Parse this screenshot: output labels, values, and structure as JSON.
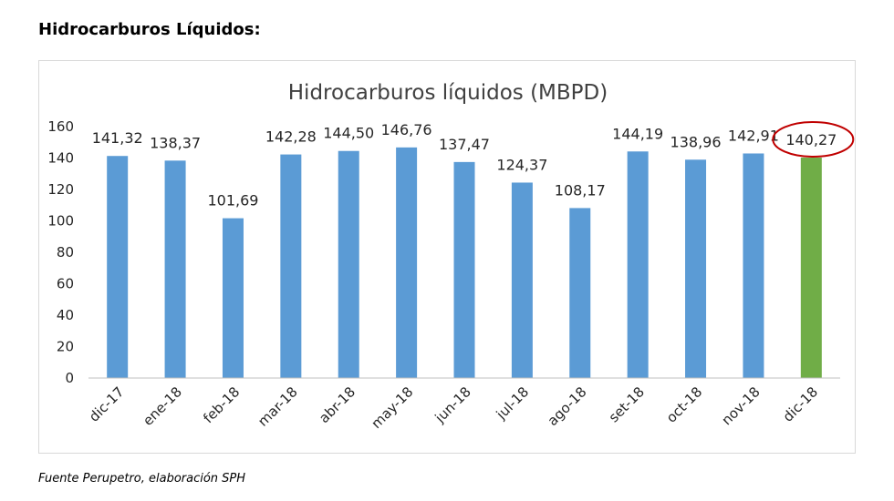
{
  "heading": "Hidrocarburos Líquidos:",
  "source": "Fuente Perupetro, elaboración SPH",
  "colors": {
    "bar": "#5b9bd5",
    "highlight_bar": "#70ad47",
    "highlight_circle": "#c00000",
    "grid": "#d9d9d9",
    "axis": "#bfbfbf"
  },
  "chart_data": {
    "type": "bar",
    "title": "Hidrocarburos líquidos  (MBPD)",
    "xlabel": "",
    "ylabel": "",
    "ylim": [
      0,
      160
    ],
    "yticks": [
      0,
      20,
      40,
      60,
      80,
      100,
      120,
      140,
      160
    ],
    "grid": false,
    "legend": "none",
    "categories": [
      "dic-17",
      "ene-18",
      "feb-18",
      "mar-18",
      "abr-18",
      "may-18",
      "jun-18",
      "jul-18",
      "ago-18",
      "set-18",
      "oct-18",
      "nov-18",
      "dic-18"
    ],
    "values": [
      141.32,
      138.37,
      101.69,
      142.28,
      144.5,
      146.76,
      137.47,
      124.37,
      108.17,
      144.19,
      138.96,
      142.91,
      140.27
    ],
    "value_labels": [
      "141,32",
      "138,37",
      "101,69",
      "142,28",
      "144,50",
      "146,76",
      "137,47",
      "124,37",
      "108,17",
      "144,19",
      "138,96",
      "142,91",
      "140,27"
    ],
    "highlight_category": "dic-18"
  }
}
